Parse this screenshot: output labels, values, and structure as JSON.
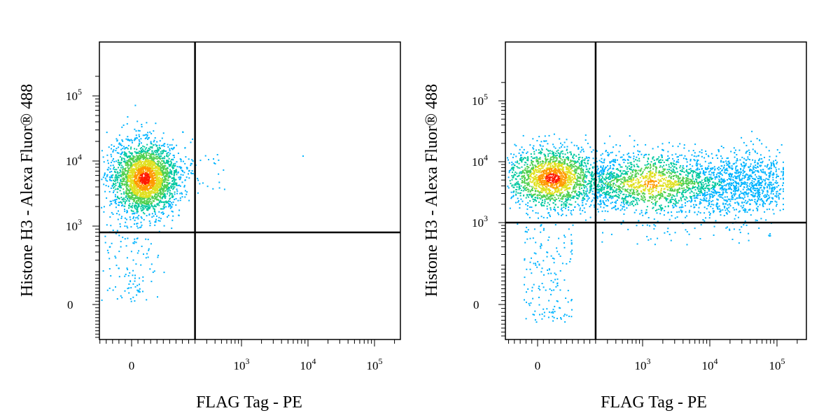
{
  "chart_data": [
    {
      "type": "scatter",
      "xlabel": "FLAG Tag - PE",
      "ylabel": "Histone H3 - Alexa Fluor® 488",
      "x_scale": "biexponential",
      "y_scale": "biexponential",
      "x_ticks": [
        {
          "value": 0,
          "base": "0",
          "exp": ""
        },
        {
          "value": 1000,
          "base": "10",
          "exp": "3"
        },
        {
          "value": 10000,
          "base": "10",
          "exp": "4"
        },
        {
          "value": 100000,
          "base": "10",
          "exp": "5"
        }
      ],
      "y_ticks": [
        {
          "value": 0,
          "base": "0",
          "exp": ""
        },
        {
          "value": 1000,
          "base": "10",
          "exp": "3"
        },
        {
          "value": 10000,
          "base": "10",
          "exp": "4"
        },
        {
          "value": 100000,
          "base": "10",
          "exp": "5"
        }
      ],
      "gate": {
        "x": 200,
        "y": 800
      },
      "populations": [
        {
          "x_center": 40,
          "y_center": 5500,
          "x_spread_log": 0.0,
          "y_spread_log": 0.2,
          "density": "high",
          "note": "FLAG negative, H3 positive"
        }
      ]
    },
    {
      "type": "scatter",
      "xlabel": "FLAG Tag - PE",
      "ylabel": "Histone H3 - Alexa Fluor® 488",
      "x_scale": "biexponential",
      "y_scale": "biexponential",
      "x_ticks": [
        {
          "value": 0,
          "base": "0",
          "exp": ""
        },
        {
          "value": 1000,
          "base": "10",
          "exp": "3"
        },
        {
          "value": 10000,
          "base": "10",
          "exp": "4"
        },
        {
          "value": 100000,
          "base": "10",
          "exp": "5"
        }
      ],
      "y_ticks": [
        {
          "value": 0,
          "base": "0",
          "exp": ""
        },
        {
          "value": 1000,
          "base": "10",
          "exp": "3"
        },
        {
          "value": 10000,
          "base": "10",
          "exp": "4"
        },
        {
          "value": 100000,
          "base": "10",
          "exp": "5"
        }
      ],
      "gate": {
        "x": 200,
        "y": 1000
      },
      "populations": [
        {
          "x_center": 50,
          "y_center": 5500,
          "density": "high",
          "note": "FLAG negative, H3 positive"
        },
        {
          "x_center": 1500,
          "y_center": 4500,
          "x_range": [
            200,
            50000
          ],
          "density": "medium",
          "note": "FLAG positive, H3 positive"
        }
      ]
    }
  ]
}
